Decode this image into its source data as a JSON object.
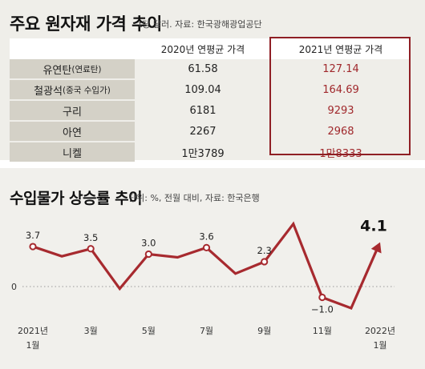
{
  "table_title": "주요 원자재 가격 추이",
  "table_subtitle": "t당 달러. 자료: 한국광해광업공단",
  "table": {
    "headers": [
      "",
      "2020년 연평균 가격",
      "2021년 연평균 가격"
    ],
    "rows": [
      {
        "label": "유연탄",
        "label_note": "(연료탄)",
        "v2020": "61.58",
        "v2021": "127.14"
      },
      {
        "label": "철광석",
        "label_note": "(중국 수입가)",
        "v2020": "109.04",
        "v2021": "164.69"
      },
      {
        "label": "구리",
        "label_note": "",
        "v2020": "6181",
        "v2021": "9293"
      },
      {
        "label": "아연",
        "label_note": "",
        "v2020": "2267",
        "v2021": "2968"
      },
      {
        "label": "니켈",
        "label_note": "",
        "v2020": "1만3789",
        "v2021": "1만8333"
      }
    ]
  },
  "chart_title": "수입물가 상승률 추이",
  "chart_subtitle": "단위: %, 전월 대비, 자료: 한국은행",
  "colors": {
    "line": "#a72a2f",
    "highlight_border": "#8f1f24",
    "value_2021": "#a0282c"
  },
  "chart_data": {
    "type": "line",
    "x": [
      "2021-01",
      "2021-02",
      "2021-03",
      "2021-04",
      "2021-05",
      "2021-06",
      "2021-07",
      "2021-08",
      "2021-09",
      "2021-10",
      "2021-11",
      "2021-12",
      "2022-01"
    ],
    "values": [
      3.7,
      2.8,
      3.5,
      -0.2,
      3.0,
      2.7,
      3.6,
      1.2,
      2.3,
      5.8,
      -1.0,
      -2.0,
      4.1
    ],
    "data_labels": [
      {
        "index": 0,
        "text": "3.7"
      },
      {
        "index": 2,
        "text": "3.5"
      },
      {
        "index": 4,
        "text": "3.0"
      },
      {
        "index": 6,
        "text": "3.6"
      },
      {
        "index": 8,
        "text": "2.3"
      },
      {
        "index": 10,
        "text": "−1.0"
      },
      {
        "index": 12,
        "text": "4.1"
      }
    ],
    "xticks": [
      {
        "index": 0,
        "line1": "2021년",
        "line2": "1월"
      },
      {
        "index": 2,
        "line1": "3월",
        "line2": ""
      },
      {
        "index": 4,
        "line1": "5월",
        "line2": ""
      },
      {
        "index": 6,
        "line1": "7월",
        "line2": ""
      },
      {
        "index": 8,
        "line1": "9월",
        "line2": ""
      },
      {
        "index": 10,
        "line1": "11월",
        "line2": ""
      },
      {
        "index": 12,
        "line1": "2022년",
        "line2": "1월"
      }
    ],
    "yticks": [
      {
        "value": 0,
        "label": "0"
      }
    ],
    "ylim": [
      -3,
      7
    ],
    "markers_on_labeled_points": true,
    "grid": false
  }
}
